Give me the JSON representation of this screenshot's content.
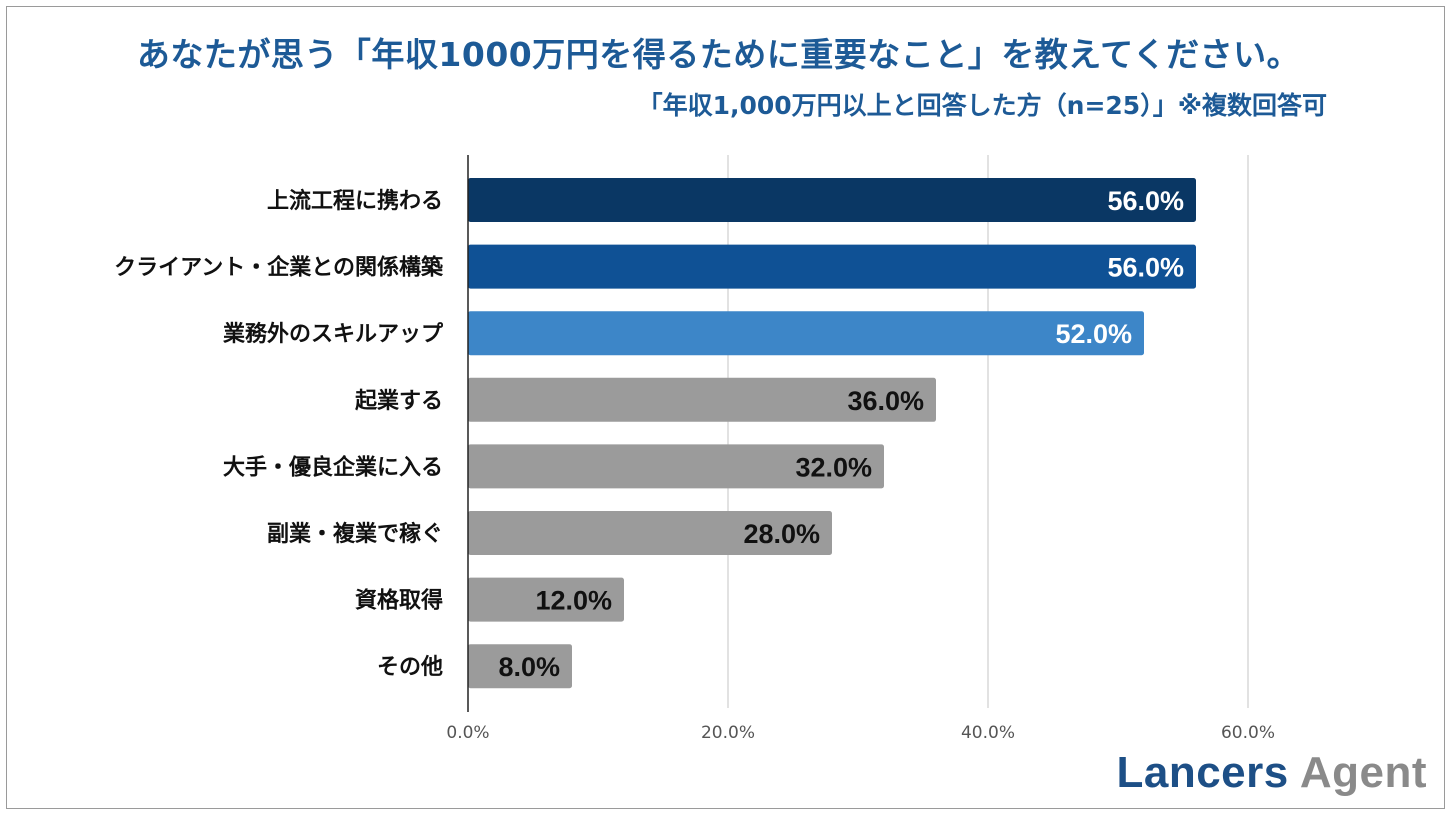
{
  "title": "あなたが思う「年収1000万円を得るために重要なこと」を教えてください。",
  "subtitle": "「年収1,000万円以上と回答した方（n=25）」※複数回答可",
  "logo": {
    "part1": "Lancers",
    "part2": "Agent"
  },
  "colors": {
    "title": "#1d5a96",
    "grid": "#d9d9d9",
    "axis": "#222222"
  },
  "chart_data": {
    "type": "bar",
    "orientation": "horizontal",
    "categories": [
      "上流工程に携わる",
      "クライアント・企業との関係構築",
      "業務外のスキルアップ",
      "起業する",
      "大手・優良企業に入る",
      "副業・複業で稼ぐ",
      "資格取得",
      "その他"
    ],
    "values": [
      56.0,
      56.0,
      52.0,
      36.0,
      32.0,
      28.0,
      12.0,
      8.0
    ],
    "data_labels": [
      "56.0%",
      "56.0%",
      "52.0%",
      "36.0%",
      "32.0%",
      "28.0%",
      "12.0%",
      "8.0%"
    ],
    "bar_colors": [
      "#0a3764",
      "#0f5195",
      "#3d86c8",
      "#9b9b9b",
      "#9b9b9b",
      "#9b9b9b",
      "#9b9b9b",
      "#9b9b9b"
    ],
    "label_colors": [
      "#ffffff",
      "#ffffff",
      "#ffffff",
      "#111111",
      "#111111",
      "#111111",
      "#111111",
      "#111111"
    ],
    "xlim": [
      0,
      60
    ],
    "xticks": [
      0,
      20,
      40,
      60
    ],
    "xtick_labels": [
      "0.0%",
      "20.0%",
      "40.0%",
      "60.0%"
    ],
    "grid": true,
    "title": "あなたが思う「年収1000万円を得るために重要なこと」を教えてください。"
  }
}
